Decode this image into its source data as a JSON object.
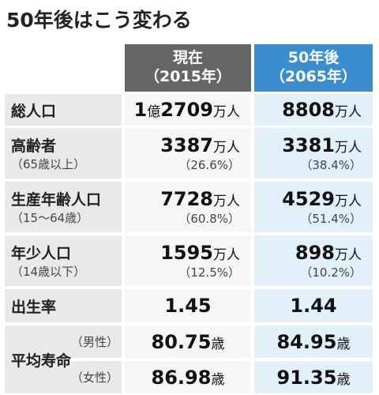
{
  "title": "50年後はこう変わる",
  "table": {
    "columns": [
      {
        "line1": "現在",
        "line2": "（2015年）"
      },
      {
        "line1": "50年後",
        "line2": "（2065年）"
      }
    ],
    "rows": [
      {
        "label": "総人口",
        "cells": [
          {
            "parts": [
              "1",
              "億",
              "2709",
              "万人"
            ]
          },
          {
            "parts": [
              "8808",
              "万人"
            ]
          }
        ]
      },
      {
        "label": "高齢者",
        "sublabel": "（65歳以上）",
        "cells": [
          {
            "parts": [
              "3387",
              "万人"
            ],
            "sub": "（26.6%）"
          },
          {
            "parts": [
              "3381",
              "万人"
            ],
            "sub": "（38.4%）"
          }
        ]
      },
      {
        "label": "生産年齢人口",
        "sublabel": "（15～64歳）",
        "cells": [
          {
            "parts": [
              "7728",
              "万人"
            ],
            "sub": "（60.8%）"
          },
          {
            "parts": [
              "4529",
              "万人"
            ],
            "sub": "（51.4%）"
          }
        ]
      },
      {
        "label": "年少人口",
        "sublabel": "（14歳以下）",
        "cells": [
          {
            "parts": [
              "1595",
              "万人"
            ],
            "sub": "（12.5%）"
          },
          {
            "parts": [
              "898",
              "万人"
            ],
            "sub": "（10.2%）"
          }
        ]
      },
      {
        "label": "出生率",
        "cells": [
          {
            "parts": [
              "1.45"
            ]
          },
          {
            "parts": [
              "1.44"
            ]
          }
        ]
      },
      {
        "label": "平均寿命",
        "subrows": [
          {
            "label": "（男性）",
            "cells": [
              {
                "parts": [
                  "80.75",
                  "歳"
                ]
              },
              {
                "parts": [
                  "84.95",
                  "歳"
                ]
              }
            ]
          },
          {
            "label": "（女性）",
            "cells": [
              {
                "parts": [
                  "86.98",
                  "歳"
                ]
              },
              {
                "parts": [
                  "91.35",
                  "歳"
                ]
              }
            ]
          }
        ]
      }
    ]
  }
}
